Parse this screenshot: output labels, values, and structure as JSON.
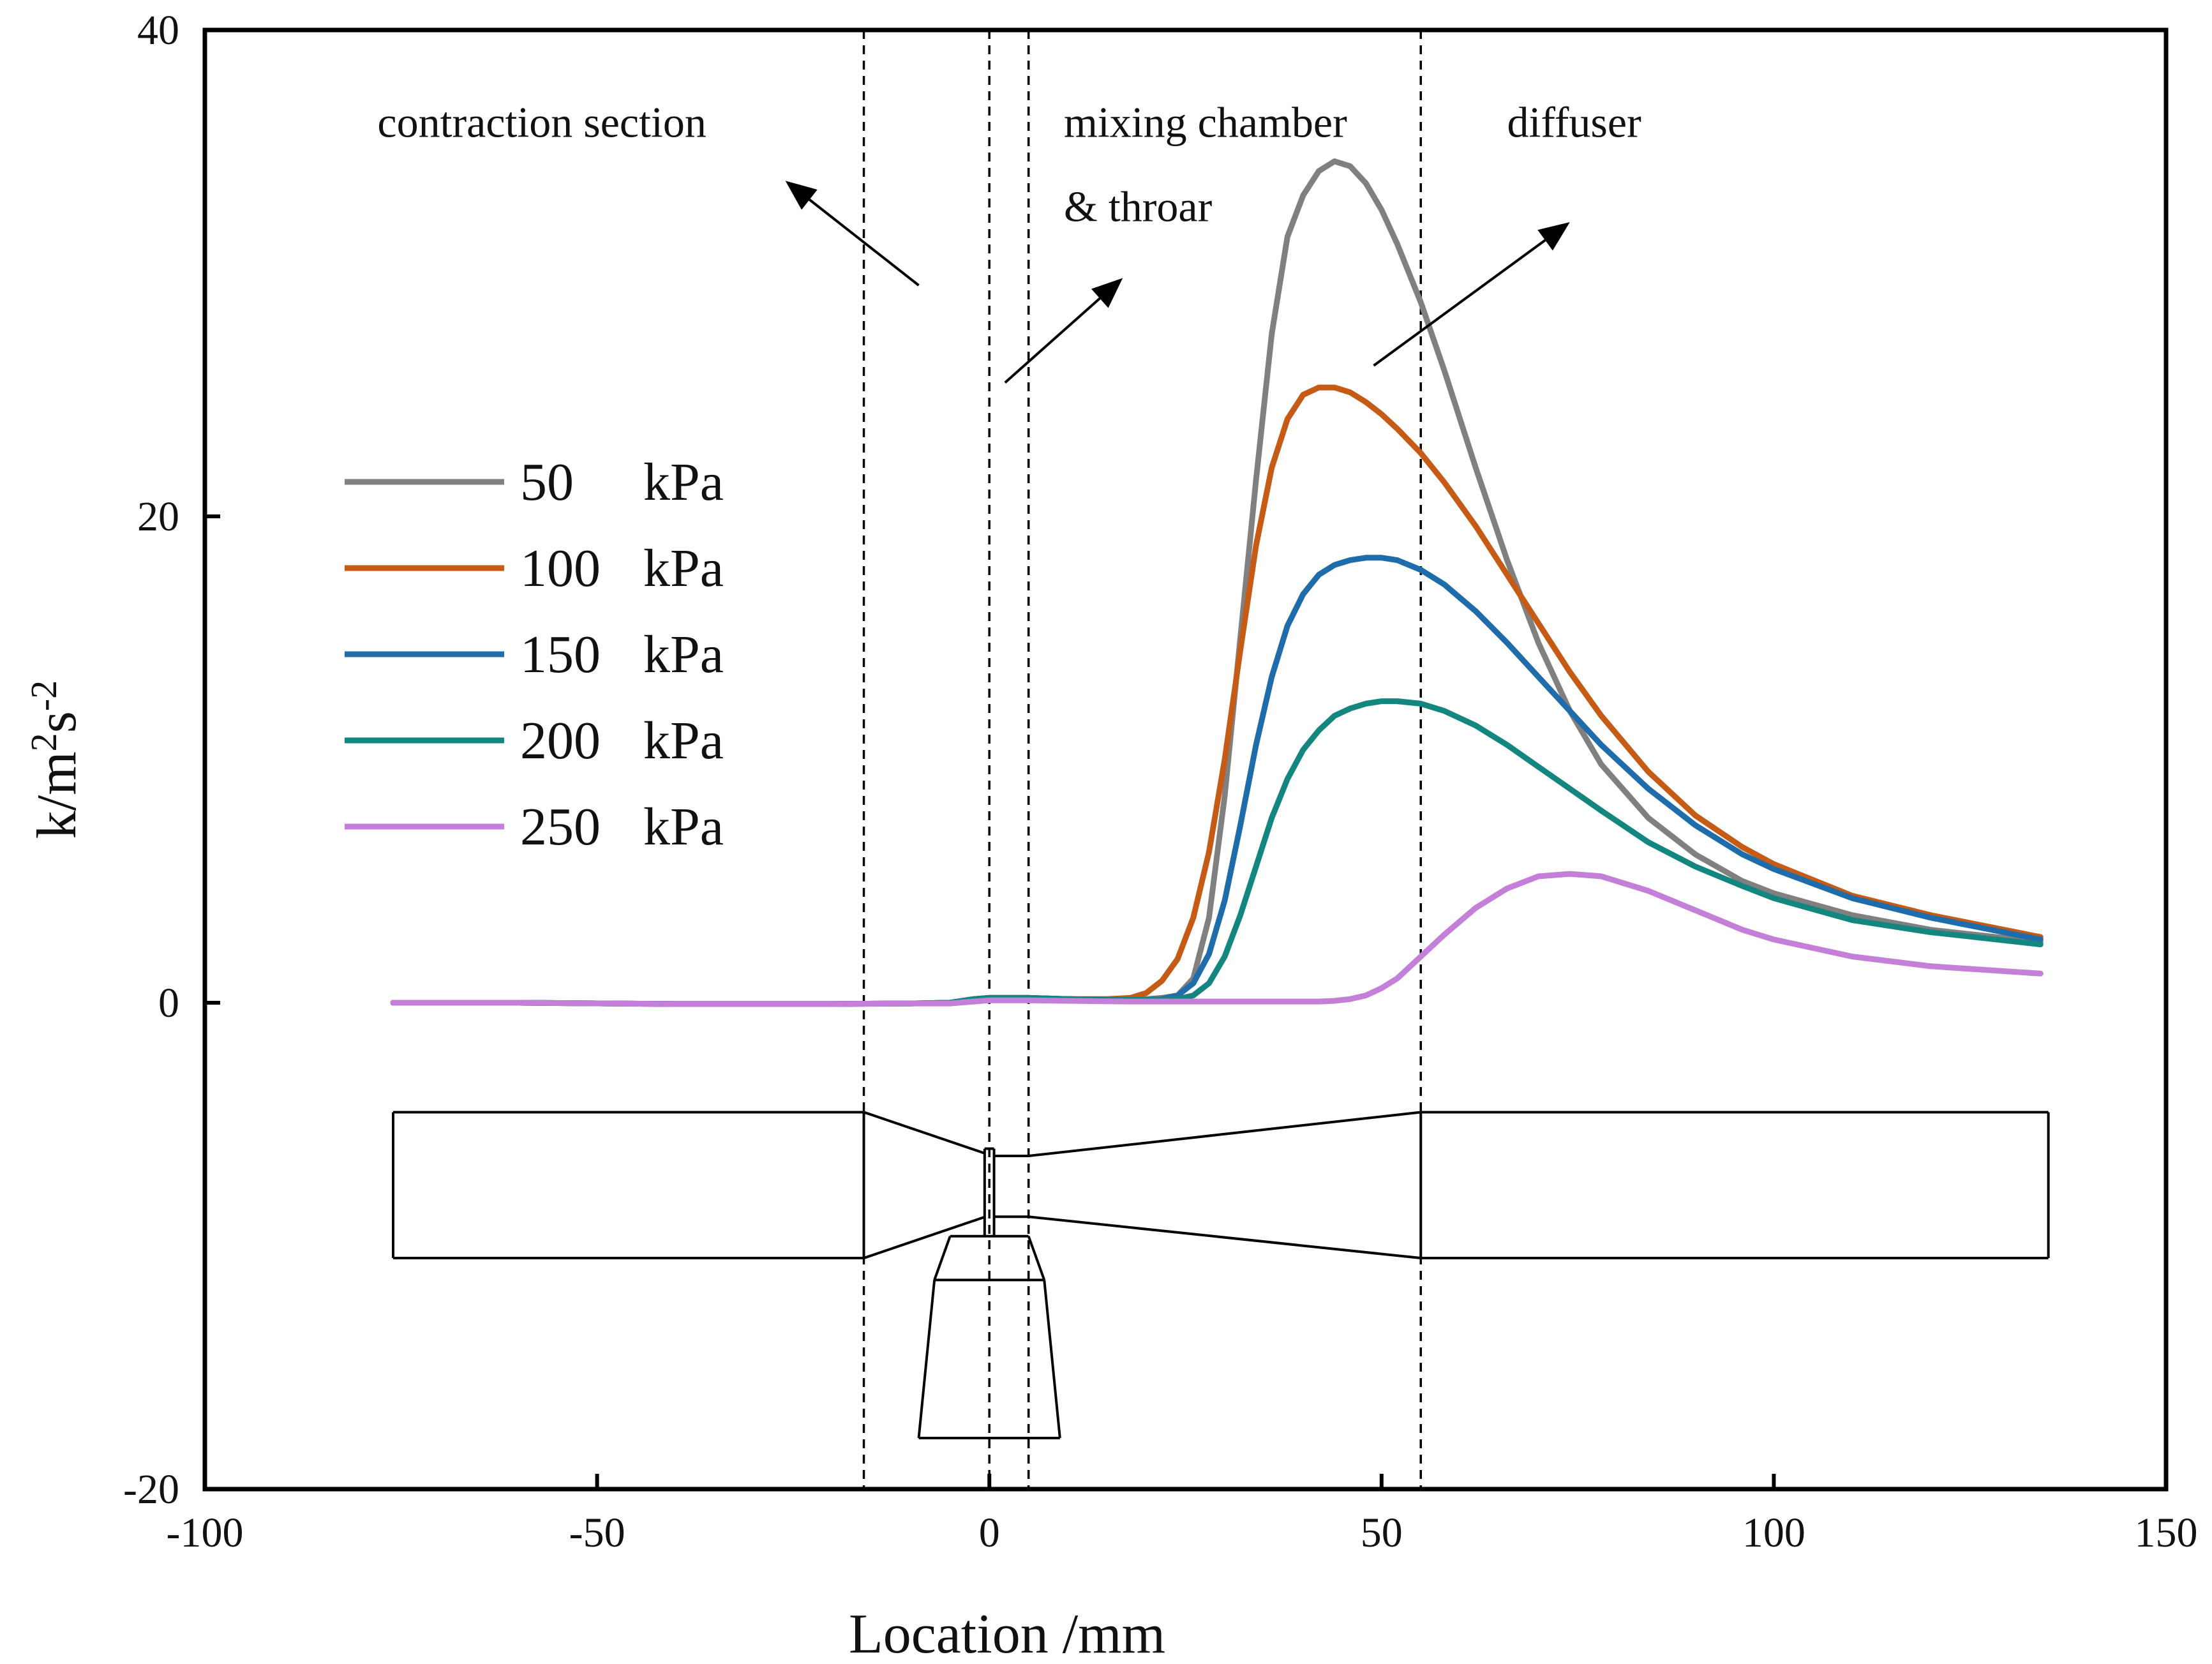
{
  "chart_data": {
    "type": "line",
    "title": "",
    "xlabel": "Location /mm",
    "ylabel_parts": {
      "base": "k/m",
      "exp1": "2",
      "mid": "s",
      "exp2": "-2"
    },
    "xlim": [
      -100,
      150
    ],
    "ylim": [
      -20,
      40
    ],
    "x_ticks": [
      -100,
      -50,
      0,
      50,
      100,
      150
    ],
    "y_ticks": [
      -20,
      0,
      20,
      40
    ],
    "x_tick_labels": [
      "-100",
      "-50",
      "0",
      "50",
      "100",
      "150"
    ],
    "y_tick_labels": [
      "-20",
      "0",
      "20",
      "40"
    ],
    "grid": false,
    "legend_position": "center-left",
    "x": [
      -76,
      -60,
      -40,
      -20,
      -10,
      -5,
      -2,
      0,
      5,
      10,
      15,
      18,
      20,
      22,
      24,
      26,
      28,
      30,
      32,
      34,
      36,
      38,
      40,
      42,
      44,
      46,
      48,
      50,
      52,
      55,
      58,
      62,
      66,
      70,
      74,
      78,
      84,
      90,
      96,
      100,
      110,
      120,
      134
    ],
    "series": [
      {
        "name": "50 kPa",
        "label_value": "50",
        "label_unit": "kPa",
        "color": "#808080",
        "values": [
          0.0,
          0.0,
          -0.05,
          -0.05,
          -0.03,
          0.0,
          0.15,
          0.2,
          0.2,
          0.15,
          0.12,
          0.12,
          0.15,
          0.2,
          0.3,
          1.0,
          3.5,
          8.5,
          15.0,
          21.5,
          27.5,
          31.5,
          33.2,
          34.2,
          34.6,
          34.4,
          33.7,
          32.6,
          31.2,
          28.8,
          26.0,
          22.0,
          18.2,
          14.8,
          12.0,
          9.8,
          7.6,
          6.1,
          5.0,
          4.5,
          3.6,
          3.0,
          2.5
        ]
      },
      {
        "name": "100 kPa",
        "label_value": "100",
        "label_unit": "kPa",
        "color": "#C65B15",
        "values": [
          0.0,
          0.0,
          -0.05,
          -0.05,
          -0.03,
          0.0,
          0.15,
          0.2,
          0.2,
          0.15,
          0.15,
          0.2,
          0.4,
          0.9,
          1.8,
          3.5,
          6.2,
          10.0,
          14.5,
          18.8,
          22.0,
          24.0,
          25.0,
          25.3,
          25.3,
          25.1,
          24.7,
          24.2,
          23.6,
          22.6,
          21.4,
          19.6,
          17.6,
          15.6,
          13.6,
          11.8,
          9.5,
          7.7,
          6.4,
          5.7,
          4.4,
          3.6,
          2.7
        ]
      },
      {
        "name": "150 kPa",
        "label_value": "150",
        "label_unit": "kPa",
        "color": "#1F6CAB",
        "values": [
          0.0,
          0.0,
          -0.05,
          -0.05,
          -0.03,
          0.0,
          0.15,
          0.2,
          0.2,
          0.15,
          0.12,
          0.12,
          0.12,
          0.15,
          0.3,
          0.8,
          2.0,
          4.2,
          7.3,
          10.6,
          13.4,
          15.5,
          16.8,
          17.6,
          18.0,
          18.2,
          18.3,
          18.3,
          18.2,
          17.8,
          17.2,
          16.1,
          14.8,
          13.4,
          12.0,
          10.6,
          8.8,
          7.3,
          6.1,
          5.5,
          4.3,
          3.5,
          2.6
        ]
      },
      {
        "name": "200 kPa",
        "label_value": "200",
        "label_unit": "kPa",
        "color": "#148680",
        "values": [
          0.0,
          0.0,
          -0.05,
          -0.05,
          -0.03,
          0.0,
          0.15,
          0.2,
          0.2,
          0.15,
          0.12,
          0.12,
          0.12,
          0.12,
          0.15,
          0.3,
          0.8,
          1.9,
          3.6,
          5.6,
          7.6,
          9.2,
          10.4,
          11.2,
          11.8,
          12.1,
          12.3,
          12.4,
          12.4,
          12.3,
          12.0,
          11.4,
          10.6,
          9.7,
          8.8,
          7.9,
          6.6,
          5.6,
          4.8,
          4.3,
          3.4,
          2.9,
          2.4
        ]
      },
      {
        "name": "250 kPa",
        "label_value": "250",
        "label_unit": "kPa",
        "color": "#C47FD9",
        "values": [
          0.0,
          0.0,
          -0.05,
          -0.05,
          -0.03,
          -0.03,
          0.05,
          0.1,
          0.1,
          0.08,
          0.06,
          0.05,
          0.05,
          0.05,
          0.05,
          0.05,
          0.05,
          0.05,
          0.05,
          0.05,
          0.05,
          0.05,
          0.05,
          0.05,
          0.08,
          0.15,
          0.3,
          0.6,
          1.0,
          1.9,
          2.8,
          3.9,
          4.7,
          5.2,
          5.3,
          5.2,
          4.6,
          3.8,
          3.0,
          2.6,
          1.9,
          1.5,
          1.2
        ]
      }
    ],
    "section_lines": [
      -16,
      0,
      5,
      55
    ],
    "annotations": [
      {
        "name": "contraction",
        "lines": [
          "contraction section"
        ],
        "tail": [
          -9,
          29.5
        ],
        "head": [
          -26,
          33.8
        ],
        "anchor": [
          -78,
          35.6
        ]
      },
      {
        "name": "mixing",
        "lines": [
          "mixing chamber",
          "& throar"
        ],
        "tail": [
          2,
          25.5
        ],
        "head": [
          17,
          29.8
        ],
        "anchor": [
          9.5,
          35.6
        ]
      },
      {
        "name": "diffuser",
        "lines": [
          "diffuser"
        ],
        "tail": [
          49,
          26.2
        ],
        "head": [
          74,
          32.1
        ],
        "anchor": [
          66,
          35.6
        ]
      }
    ],
    "ejector_outline": {
      "outer": [
        [
          [
            -76,
            -4.5
          ],
          [
            -16,
            -4.5
          ]
        ],
        [
          [
            -76,
            -10.5
          ],
          [
            -16,
            -10.5
          ]
        ],
        [
          [
            -76,
            -4.5
          ],
          [
            -76,
            -10.5
          ]
        ],
        [
          [
            -16,
            -4.5
          ],
          [
            -16,
            -10.5
          ]
        ],
        [
          [
            -16,
            -4.5
          ],
          [
            -0.5,
            -6.2
          ]
        ],
        [
          [
            -16,
            -10.5
          ],
          [
            -0.5,
            -8.8
          ]
        ],
        [
          [
            0.5,
            -6.3
          ],
          [
            5,
            -6.3
          ]
        ],
        [
          [
            0.5,
            -8.8
          ],
          [
            5,
            -8.8
          ]
        ],
        [
          [
            5,
            -6.3
          ],
          [
            55,
            -4.5
          ]
        ],
        [
          [
            5,
            -8.8
          ],
          [
            55,
            -10.5
          ]
        ],
        [
          [
            55,
            -4.5
          ],
          [
            55,
            -10.5
          ]
        ],
        [
          [
            55,
            -4.5
          ],
          [
            135,
            -4.5
          ]
        ],
        [
          [
            55,
            -10.5
          ],
          [
            135,
            -10.5
          ]
        ],
        [
          [
            135,
            -4.5
          ],
          [
            135,
            -10.5
          ]
        ],
        [
          [
            -0.6,
            -6.0
          ],
          [
            -0.6,
            -9.6
          ]
        ],
        [
          [
            0.6,
            -6.0
          ],
          [
            0.6,
            -9.6
          ]
        ],
        [
          [
            -0.6,
            -6.0
          ],
          [
            0.6,
            -6.0
          ]
        ],
        [
          [
            -5,
            -9.6
          ],
          [
            5,
            -9.6
          ]
        ],
        [
          [
            -5,
            -9.6
          ],
          [
            -7,
            -11.4
          ]
        ],
        [
          [
            5,
            -9.6
          ],
          [
            7,
            -11.4
          ]
        ],
        [
          [
            -7,
            -11.4
          ],
          [
            7,
            -11.4
          ]
        ],
        [
          [
            -7,
            -11.4
          ],
          [
            -9,
            -17.9
          ]
        ],
        [
          [
            7,
            -11.4
          ],
          [
            9,
            -17.9
          ]
        ],
        [
          [
            -9,
            -17.9
          ],
          [
            9,
            -17.9
          ]
        ]
      ]
    }
  }
}
